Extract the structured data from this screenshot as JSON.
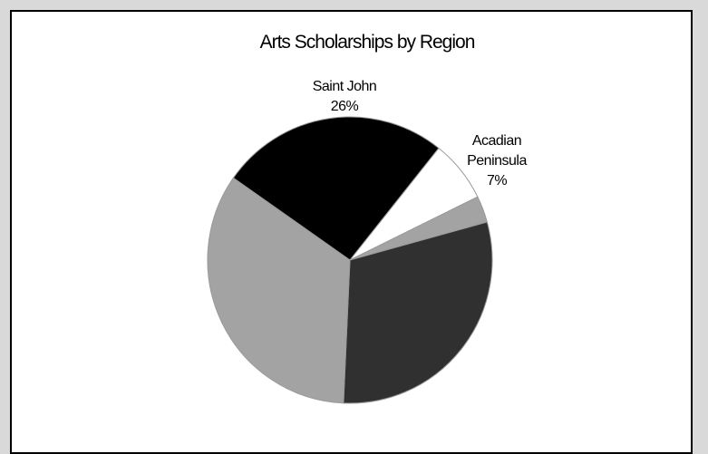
{
  "chart_data": {
    "type": "pie",
    "title": "Arts Scholarships by Region",
    "slices": [
      {
        "label": "Saint John",
        "value": 26,
        "value_label": "26%",
        "color": "#000000"
      },
      {
        "label": "Acadian Peninsula",
        "label_lines": [
          "Acadian",
          "Peninsula"
        ],
        "value": 7,
        "value_label": "7%",
        "color": "#ffffff"
      },
      {
        "label": "",
        "value": 3,
        "value_label": "",
        "color": "#a3a3a3"
      },
      {
        "label": "",
        "value": 30,
        "value_label": "",
        "color": "#303030"
      },
      {
        "label": "",
        "value": 34,
        "value_label": "",
        "color": "#a3a3a3"
      }
    ],
    "legend": "none"
  }
}
